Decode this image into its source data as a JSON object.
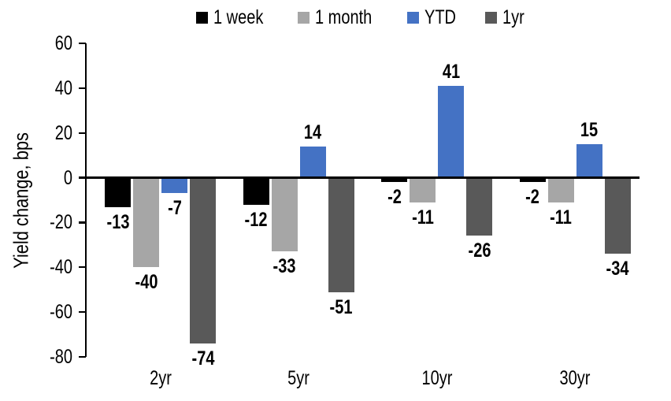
{
  "chart_data": {
    "type": "bar",
    "title": "",
    "ylabel": "Yield change, bps",
    "xlabel": "",
    "categories": [
      "2yr",
      "5yr",
      "10yr",
      "30yr"
    ],
    "series": [
      {
        "name": "1 week",
        "color": "#000000",
        "values": [
          -13,
          -12,
          -2,
          -2
        ]
      },
      {
        "name": "1 month",
        "color": "#A6A6A6",
        "values": [
          -40,
          -33,
          -11,
          -11
        ]
      },
      {
        "name": "YTD",
        "color": "#4472C4",
        "values": [
          -7,
          14,
          41,
          15
        ]
      },
      {
        "name": "1yr",
        "color": "#595959",
        "values": [
          -74,
          -51,
          -26,
          -34
        ]
      }
    ],
    "y_ticks": [
      60,
      40,
      20,
      0,
      -20,
      -40,
      -60,
      -80
    ],
    "ylim": [
      -80,
      60
    ],
    "grid": false,
    "legend_position": "top",
    "data_labels": true,
    "axis_color": "#000000"
  }
}
